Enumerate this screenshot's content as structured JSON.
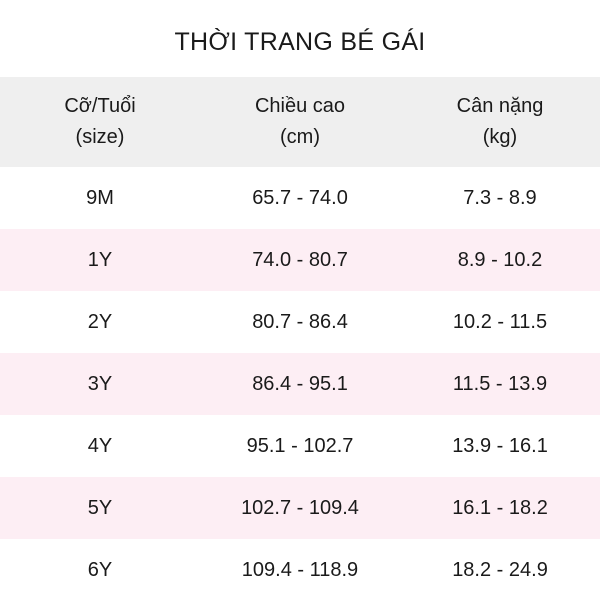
{
  "title": "THỜI TRANG BÉ GÁI",
  "headers": [
    {
      "line1": "Cỡ/Tuổi",
      "line2": "(size)"
    },
    {
      "line1": "Chiều cao",
      "line2": "(cm)"
    },
    {
      "line1": "Cân nặng",
      "line2": "(kg)"
    }
  ],
  "rows": [
    [
      "9M",
      "65.7 - 74.0",
      "7.3 - 8.9"
    ],
    [
      "1Y",
      "74.0 - 80.7",
      "8.9 - 10.2"
    ],
    [
      "2Y",
      "80.7 - 86.4",
      "10.2 - 11.5"
    ],
    [
      "3Y",
      "86.4 - 95.1",
      "11.5 - 13.9"
    ],
    [
      "4Y",
      "95.1 - 102.7",
      "13.9 - 16.1"
    ],
    [
      "5Y",
      "102.7 - 109.4",
      "16.1 - 18.2"
    ],
    [
      "6Y",
      "109.4 - 118.9",
      "18.2 - 24.9"
    ]
  ],
  "colors": {
    "header_bg": "#efefef",
    "alt_row_bg": "#fdeef4"
  }
}
